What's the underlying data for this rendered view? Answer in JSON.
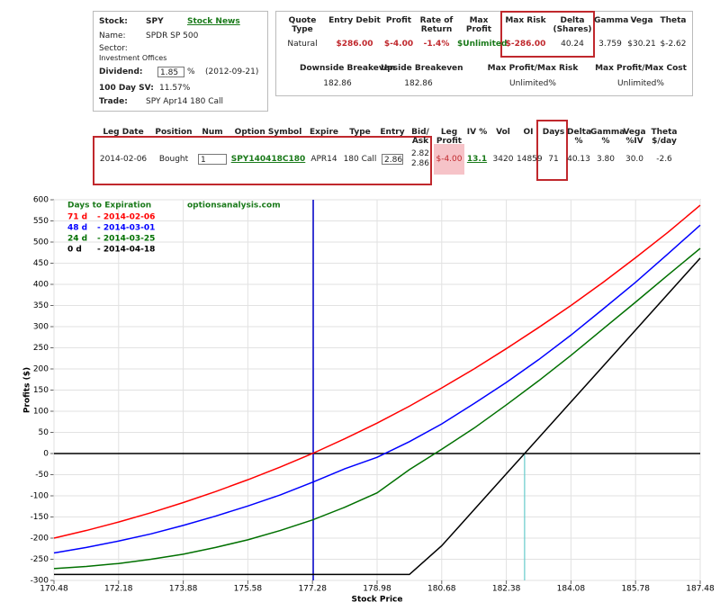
{
  "stock_panel": {
    "stock_label": "Stock:",
    "stock": "SPY",
    "news_link": "Stock News",
    "name_label": "Name:",
    "name": "SPDR SP 500",
    "sector_label": "Sector:",
    "sector": "Investment Offices",
    "dividend_label": "Dividend:",
    "dividend": "1.85",
    "dividend_unit": "%",
    "dividend_date": "(2012-09-21)",
    "sv_label": "100 Day SV:",
    "sv": "11.57%",
    "trade_label": "Trade:",
    "trade": "SPY Apr14 180 Call"
  },
  "quote_table": {
    "headers": [
      "Quote Type",
      "Entry Debit",
      "Profit",
      "Rate of Return",
      "Max Profit",
      "Max Risk",
      "Delta (Shares)",
      "Gamma",
      "Vega",
      "Theta"
    ],
    "row": [
      "Natural",
      "$286.00",
      "$-4.00",
      "-1.4%",
      "$Unlimited",
      "$-286.00",
      "40.24",
      "3.759",
      "$30.21",
      "$-2.62"
    ],
    "headers2": [
      "Downside Breakeven",
      "Upside Breakeven",
      "Max Profit/Max Risk",
      "Max Profit/Max Cost"
    ],
    "row2": [
      "182.86",
      "182.86",
      "Unlimited%",
      "Unlimited%"
    ]
  },
  "leg_table": {
    "headers": [
      "Leg Date",
      "Position",
      "Num",
      "Option Symbol",
      "Expire",
      "Type",
      "Entry",
      "Bid/ Ask",
      "Leg Profit",
      "IV %",
      "Vol",
      "OI",
      "Days",
      "Delta %",
      "Gamma %",
      "Vega %IV",
      "Theta $/day"
    ],
    "row": [
      "2014-02-06",
      "Bought",
      "1",
      "SPY140418C180",
      "APR14",
      "180 Call",
      "2.86",
      [
        "2.82",
        "2.86"
      ],
      "$-4.00",
      "13.1",
      "3420",
      "14859",
      "71",
      "40.13",
      "3.80",
      "30.0",
      "-2.6"
    ]
  },
  "chart_data": {
    "type": "line",
    "legend_title": "Days to Expiration",
    "watermark": "optionsanalysis.com",
    "x_label": "Stock Price",
    "y_label": "Profits ($)",
    "x": [
      170.48,
      171.33,
      172.18,
      173.03,
      173.88,
      174.73,
      175.58,
      176.43,
      177.28,
      178.13,
      178.98,
      179.83,
      180.68,
      181.53,
      182.38,
      183.23,
      184.08,
      184.93,
      185.78,
      186.63,
      187.48
    ],
    "series": [
      {
        "name": "71 d",
        "expiry": "- 2014-02-06",
        "color": "#ff0000",
        "values": [
          -200,
          -182,
          -162,
          -140,
          -116,
          -90,
          -62,
          -32,
          0,
          35,
          72,
          112,
          155,
          200,
          248,
          298,
          350,
          405,
          463,
          523,
          587
        ]
      },
      {
        "name": "48 d",
        "expiry": "- 2014-03-01",
        "color": "#0000ff",
        "values": [
          -235,
          -222,
          -207,
          -190,
          -170,
          -148,
          -124,
          -98,
          -68,
          -36,
          -9,
          28,
          70,
          118,
          168,
          222,
          280,
          342,
          405,
          472,
          540
        ]
      },
      {
        "name": "24 d",
        "expiry": "- 2014-03-25",
        "color": "#007000",
        "values": [
          -272,
          -267,
          -260,
          -250,
          -238,
          -222,
          -204,
          -182,
          -157,
          -127,
          -93,
          -38,
          10,
          60,
          115,
          172,
          232,
          295,
          358,
          422,
          485
        ]
      },
      {
        "name": "0 d",
        "expiry": "- 2014-04-18",
        "color": "#000000",
        "values": [
          -286,
          -286,
          -286,
          -286,
          -286,
          -286,
          -286,
          -286,
          -286,
          -286,
          -286,
          -286,
          -218,
          -133,
          -48,
          37,
          122,
          207,
          292,
          377,
          462
        ]
      }
    ],
    "price_line": {
      "x": 177.3,
      "color": "#0000cc"
    },
    "breakeven_line": {
      "x": 182.86,
      "color": "#66cccc"
    },
    "xlim": [
      170.48,
      187.48
    ],
    "xticks": [
      170.48,
      172.18,
      173.88,
      175.58,
      177.28,
      178.98,
      180.68,
      182.38,
      184.08,
      185.78,
      187.48
    ],
    "ylim": [
      -300,
      600
    ],
    "yticks": [
      -300,
      -250,
      -200,
      -150,
      -100,
      -50,
      0,
      50,
      100,
      150,
      200,
      250,
      300,
      350,
      400,
      450,
      500,
      550,
      600
    ],
    "grid": true
  }
}
